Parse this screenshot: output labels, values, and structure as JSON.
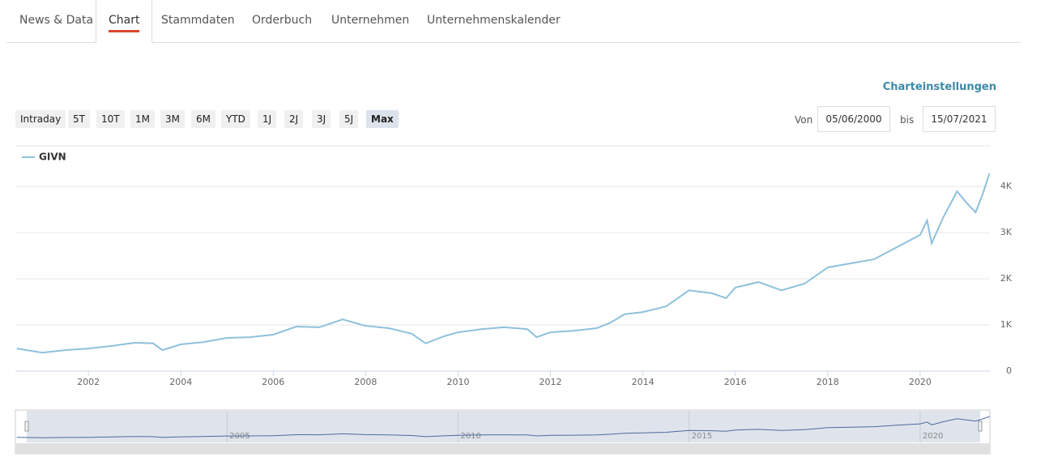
{
  "tabs": [
    "News & Data",
    "Chart",
    "Stammdaten",
    "Orderbuch",
    "Unternehmen",
    "Unternehmenskalender"
  ],
  "settings_link": "Charteinstellungen",
  "range_buttons": [
    "Intraday",
    "5T",
    "10T",
    "1M",
    "3M",
    "6M",
    "YTD",
    "1J",
    "2J",
    "3J",
    "5J",
    "Max"
  ],
  "from_label": "Von",
  "from_date": "05/06/2000",
  "to_label": "bis",
  "to_date": "15/07/2021",
  "chart_data": {
    "type": "line",
    "x": [
      2000.45,
      2001.0,
      2001.5,
      2002.0,
      2002.5,
      2003.0,
      2003.4,
      2003.6,
      2004.0,
      2004.5,
      2005.0,
      2005.5,
      2006.0,
      2006.5,
      2007.0,
      2007.5,
      2008.0,
      2008.5,
      2009.0,
      2009.3,
      2009.7,
      2010.0,
      2010.5,
      2011.0,
      2011.5,
      2011.7,
      2012.0,
      2012.5,
      2013.0,
      2013.3,
      2013.6,
      2014.0,
      2014.5,
      2015.0,
      2015.5,
      2015.8,
      2016.0,
      2016.5,
      2017.0,
      2017.5,
      2018.0,
      2018.5,
      2019.0,
      2019.5,
      2020.0,
      2020.15,
      2020.25,
      2020.5,
      2020.8,
      2021.0,
      2021.2,
      2021.35,
      2021.5
    ],
    "series": [
      {
        "name": "GIVN",
        "color": "#8ec1dc",
        "values": [
          490,
          400,
          455,
          490,
          545,
          615,
          600,
          455,
          580,
          630,
          720,
          735,
          790,
          965,
          950,
          1120,
          980,
          930,
          810,
          600,
          755,
          840,
          910,
          950,
          910,
          735,
          840,
          875,
          930,
          1050,
          1230,
          1280,
          1400,
          1750,
          1685,
          1580,
          1810,
          1930,
          1750,
          1895,
          2245,
          2335,
          2420,
          2685,
          2950,
          3265,
          2770,
          3330,
          3895,
          3650,
          3440,
          3825,
          4280
        ]
      }
    ],
    "xlim": [
      2000.42,
      2021.51
    ],
    "xticks": [
      2002,
      2004,
      2006,
      2008,
      2010,
      2012,
      2014,
      2016,
      2018,
      2020
    ],
    "ylim": [
      0,
      4880
    ],
    "yticks": [
      0,
      {
        "value": 1000,
        "label": "1K"
      },
      {
        "value": 2000,
        "label": "2K"
      },
      {
        "value": 3000,
        "label": "3K"
      },
      {
        "value": 4000,
        "label": "4K"
      }
    ],
    "grid": true,
    "navigator_xticks": [
      2005,
      2010,
      2015,
      2020
    ]
  }
}
